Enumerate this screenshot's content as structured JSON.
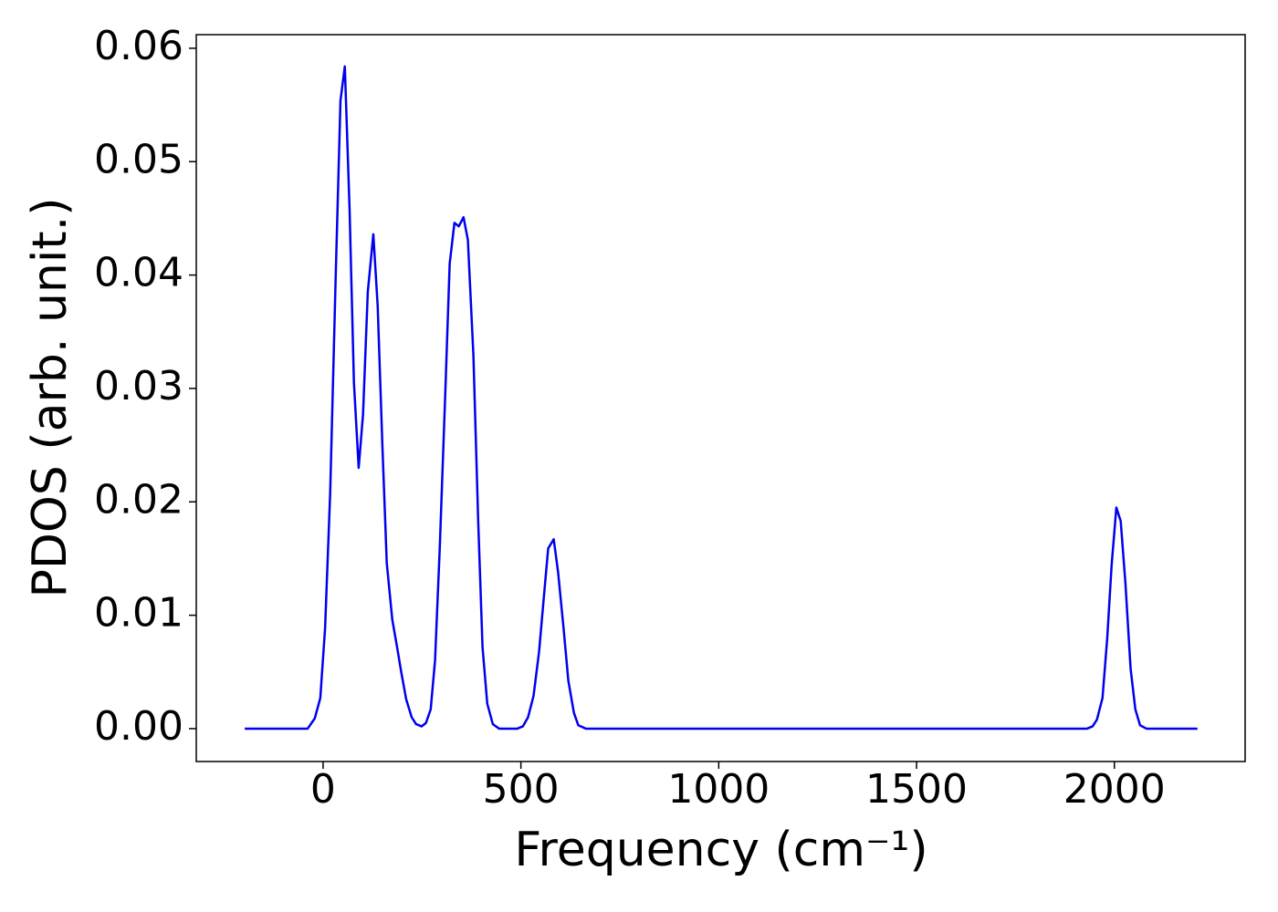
{
  "chart_data": {
    "type": "line",
    "xlabel": "Frequency (cm⁻¹)",
    "ylabel": "PDOS (arb. unit.)",
    "xlim": [
      -320.5,
      2330.5
    ],
    "ylim": [
      -0.0029,
      0.0612
    ],
    "xticks": [
      0,
      500,
      1000,
      1500,
      2000
    ],
    "yticks": [
      {
        "value": 0,
        "label": "0.00"
      },
      0.01,
      0.02,
      0.03,
      0.04,
      0.05,
      0.06
    ],
    "grid": false,
    "series": [
      {
        "color": "#0000ee",
        "x": [
          -198,
          -39,
          -21,
          -7,
          5,
          18,
          32,
          44,
          55,
          67,
          78,
          90,
          101,
          113,
          127,
          138,
          150,
          161,
          175,
          187,
          198,
          210,
          224,
          235,
          249,
          260,
          272,
          283,
          295,
          309,
          320,
          332,
          343,
          355,
          366,
          380,
          392,
          403,
          415,
          429,
          445,
          491,
          505,
          518,
          532,
          546,
          558,
          569,
          583,
          594,
          608,
          620,
          634,
          645,
          664,
          1931,
          1945,
          1956,
          1970,
          1982,
          1993,
          2005,
          2016,
          2028,
          2041,
          2053,
          2065,
          2081,
          2210
        ],
        "values": [
          0,
          0,
          0.0009,
          0.0027,
          0.0088,
          0.0208,
          0.04,
          0.0554,
          0.0584,
          0.0458,
          0.0305,
          0.023,
          0.0277,
          0.0385,
          0.0436,
          0.0373,
          0.0249,
          0.0146,
          0.0096,
          0.0072,
          0.0049,
          0.0026,
          0.001,
          0.0004,
          0.0002,
          0.0005,
          0.0017,
          0.006,
          0.016,
          0.0297,
          0.041,
          0.0446,
          0.0443,
          0.0451,
          0.0431,
          0.0329,
          0.0184,
          0.0072,
          0.0022,
          0.0004,
          0,
          0,
          0.0002,
          0.001,
          0.0029,
          0.0068,
          0.0116,
          0.0159,
          0.0167,
          0.0138,
          0.0088,
          0.0042,
          0.0014,
          0.0003,
          0,
          0,
          0.0002,
          0.0008,
          0.0027,
          0.008,
          0.0144,
          0.0195,
          0.0183,
          0.0128,
          0.0053,
          0.0017,
          0.0003,
          0,
          0
        ]
      }
    ]
  }
}
